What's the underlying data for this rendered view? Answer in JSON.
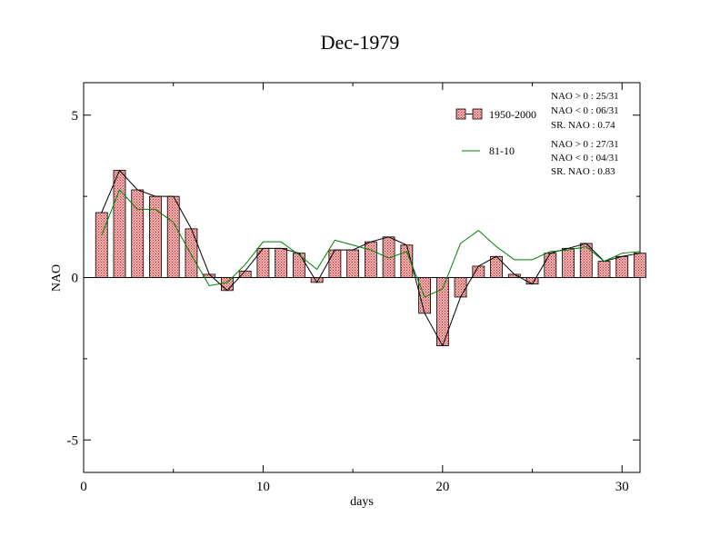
{
  "chart_data": {
    "type": "bar",
    "title": "Dec-1979",
    "xlabel": "days",
    "ylabel": "NAO",
    "xlim": [
      0,
      31
    ],
    "ylim": [
      -6,
      6
    ],
    "xticks": [
      0,
      10,
      20,
      30
    ],
    "xtick_labels": [
      "0",
      "10",
      "20",
      "30"
    ],
    "yticks": [
      -5,
      0,
      5
    ],
    "ytick_labels": [
      "-5",
      "0",
      "5"
    ],
    "grid": false,
    "legend_position": "top-right",
    "x": [
      1,
      2,
      3,
      4,
      5,
      6,
      7,
      8,
      9,
      10,
      11,
      12,
      13,
      14,
      15,
      16,
      17,
      18,
      19,
      20,
      21,
      22,
      23,
      24,
      25,
      26,
      27,
      28,
      29,
      30,
      31
    ],
    "series": [
      {
        "name": "1950-2000",
        "kind": "bar+line",
        "color": "#e88a8a",
        "line_color": "#000000",
        "values": [
          2.0,
          3.3,
          2.7,
          2.5,
          2.5,
          1.5,
          0.1,
          -0.4,
          0.2,
          0.9,
          0.9,
          0.75,
          -0.15,
          0.85,
          0.85,
          1.1,
          1.25,
          1.0,
          -1.1,
          -2.1,
          -0.6,
          0.35,
          0.65,
          0.1,
          -0.2,
          0.75,
          0.9,
          1.05,
          0.5,
          0.65,
          0.75
        ]
      },
      {
        "name": "81-10",
        "kind": "line",
        "color": "#008000",
        "values": [
          1.3,
          2.7,
          2.1,
          2.1,
          1.7,
          0.7,
          -0.25,
          -0.15,
          0.4,
          1.1,
          1.1,
          0.7,
          0.25,
          1.15,
          1.0,
          0.85,
          0.6,
          0.8,
          -0.6,
          -0.35,
          1.05,
          1.45,
          0.95,
          0.55,
          0.55,
          0.8,
          0.85,
          0.95,
          0.5,
          0.75,
          0.8
        ]
      }
    ],
    "stats": [
      {
        "l1": "NAO > 0 : 25/31",
        "l2": "NAO < 0 : 06/31",
        "l3": "SR. NAO :  0.74"
      },
      {
        "l1": "NAO > 0 : 27/31",
        "l2": "NAO < 0 : 04/31",
        "l3": "SR. NAO :  0.83"
      }
    ]
  }
}
